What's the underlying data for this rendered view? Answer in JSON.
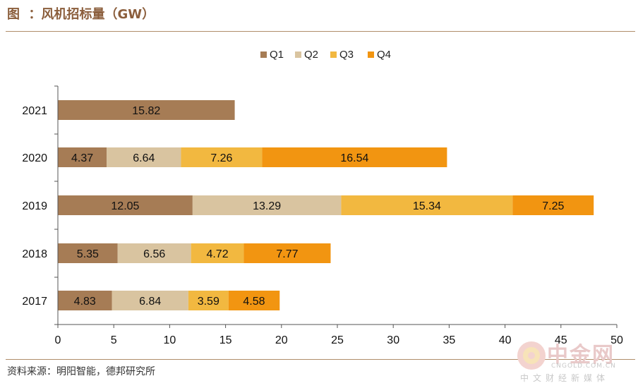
{
  "header": {
    "title": "图  ：风机招标量（GW）"
  },
  "footer": {
    "source": "资料来源：明阳智能，德邦研究所"
  },
  "watermark": {
    "logo_text": "中金网",
    "url": "CNGOLD.COM.CN",
    "subtitle": "中文财经新媒体"
  },
  "chart_data": {
    "type": "bar",
    "orientation": "horizontal",
    "stacked": true,
    "categories": [
      "2021",
      "2020",
      "2019",
      "2018",
      "2017"
    ],
    "series": [
      {
        "name": "Q1",
        "color": "#A67C55",
        "values": [
          15.82,
          4.37,
          12.05,
          5.35,
          4.83
        ]
      },
      {
        "name": "Q2",
        "color": "#D9C4A0",
        "values": [
          null,
          6.64,
          13.29,
          6.56,
          6.84
        ]
      },
      {
        "name": "Q3",
        "color": "#F2B840",
        "values": [
          null,
          7.26,
          15.34,
          4.72,
          3.59
        ]
      },
      {
        "name": "Q4",
        "color": "#F29511",
        "values": [
          null,
          16.54,
          7.25,
          7.77,
          4.58
        ]
      }
    ],
    "xlim": [
      0,
      50
    ],
    "xticks": [
      0,
      5,
      10,
      15,
      20,
      25,
      30,
      35,
      40,
      45,
      50
    ],
    "legend_position": "top-center",
    "grid": false
  }
}
